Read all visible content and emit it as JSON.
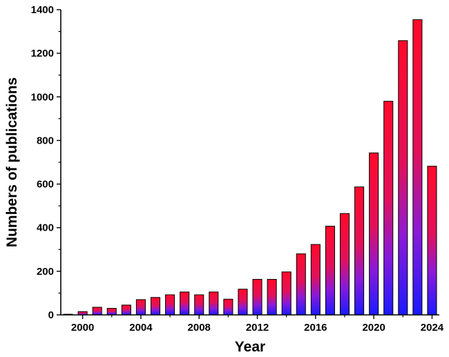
{
  "chart_data": {
    "type": "bar",
    "title": "",
    "xlabel": "Year",
    "ylabel": "Numbers of publications",
    "x_ticks": [
      2000,
      2004,
      2008,
      2012,
      2016,
      2020,
      2024
    ],
    "y_ticks": [
      0,
      200,
      400,
      600,
      800,
      1000,
      1200,
      1400
    ],
    "xlim": [
      1998.5,
      2024.5
    ],
    "ylim": [
      0,
      1400
    ],
    "grid": false,
    "colors": {
      "bar_top": "#ff0a2a",
      "bar_bottom": "#1a1aff",
      "outline": "#000000"
    },
    "categories": [
      1999,
      2000,
      2001,
      2002,
      2003,
      2004,
      2005,
      2006,
      2007,
      2008,
      2009,
      2010,
      2011,
      2012,
      2013,
      2014,
      2015,
      2016,
      2017,
      2018,
      2019,
      2020,
      2021,
      2022,
      2023,
      2024
    ],
    "values": [
      3,
      15,
      35,
      30,
      45,
      70,
      80,
      92,
      105,
      92,
      105,
      72,
      118,
      163,
      163,
      197,
      280,
      323,
      407,
      465,
      587,
      743,
      980,
      1258,
      1354,
      682
    ]
  }
}
